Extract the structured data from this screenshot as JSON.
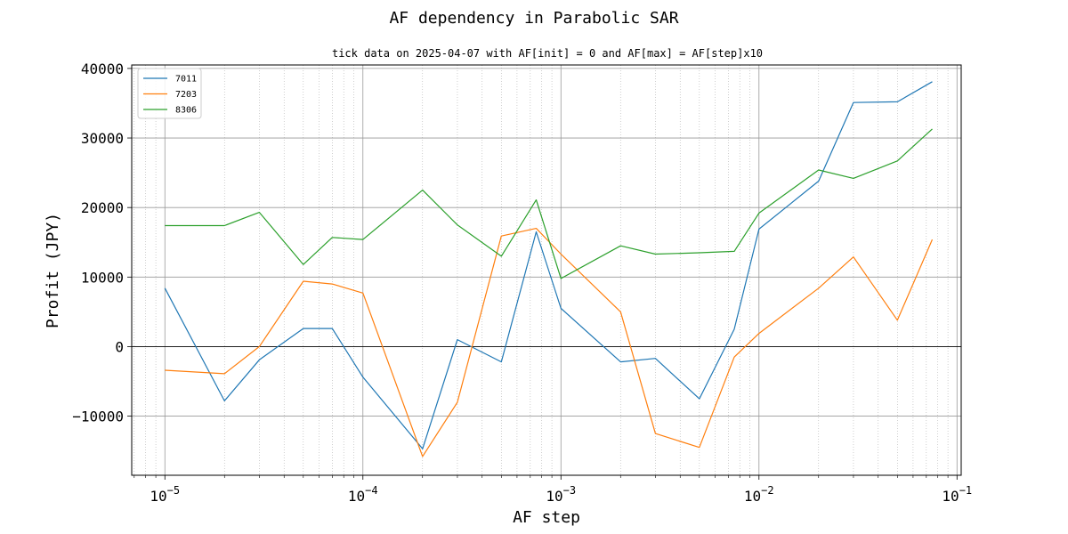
{
  "chart_data": {
    "type": "line",
    "title": "AF dependency in Parabolic SAR",
    "subtitle": "tick data on 2025-04-07 with AF[init] = 0 and AF[max] = AF[step]x10",
    "xlabel": "AF step",
    "ylabel": "Profit (JPY)",
    "xscale": "log",
    "xlim": [
      6.8e-06,
      0.105
    ],
    "ylim": [
      -18500,
      40500
    ],
    "grid": true,
    "legend_position": "top-left",
    "x_ticks": [
      {
        "value": 1e-05,
        "base": "10",
        "exp": "−5"
      },
      {
        "value": 0.0001,
        "base": "10",
        "exp": "−4"
      },
      {
        "value": 0.001,
        "base": "10",
        "exp": "−3"
      },
      {
        "value": 0.01,
        "base": "10",
        "exp": "−2"
      },
      {
        "value": 0.1,
        "base": "10",
        "exp": "−1"
      }
    ],
    "y_ticks": [
      {
        "value": -10000,
        "label": "−10000"
      },
      {
        "value": 0,
        "label": "0"
      },
      {
        "value": 10000,
        "label": "10000"
      },
      {
        "value": 20000,
        "label": "20000"
      },
      {
        "value": 30000,
        "label": "30000"
      },
      {
        "value": 40000,
        "label": "40000"
      }
    ],
    "x": [
      1e-05,
      2e-05,
      3e-05,
      5e-05,
      7e-05,
      0.0001,
      0.0002,
      0.0003,
      0.0005,
      0.00075,
      0.001,
      0.002,
      0.003,
      0.005,
      0.0075,
      0.01,
      0.02,
      0.03,
      0.05,
      0.075
    ],
    "series": [
      {
        "name": "7011",
        "color": "#1f77b4",
        "values": [
          8400,
          -7800,
          -1900,
          2600,
          2600,
          -4400,
          -14700,
          1000,
          -2200,
          16500,
          5500,
          -2200,
          -1700,
          -7500,
          2500,
          16900,
          23800,
          35100,
          35200,
          38100
        ]
      },
      {
        "name": "7203",
        "color": "#ff7f0e",
        "values": [
          -3400,
          -3900,
          0,
          9400,
          9000,
          7700,
          -15800,
          -8000,
          15900,
          17000,
          13300,
          5000,
          -12500,
          -14500,
          -1500,
          1900,
          8400,
          12900,
          3800,
          15400
        ]
      },
      {
        "name": "8306",
        "color": "#2ca02c",
        "values": [
          17400,
          17400,
          19300,
          11800,
          15700,
          15400,
          22500,
          17500,
          13000,
          21100,
          9800,
          14500,
          13300,
          13500,
          13700,
          19200,
          25400,
          24200,
          26700,
          31300
        ]
      }
    ]
  }
}
